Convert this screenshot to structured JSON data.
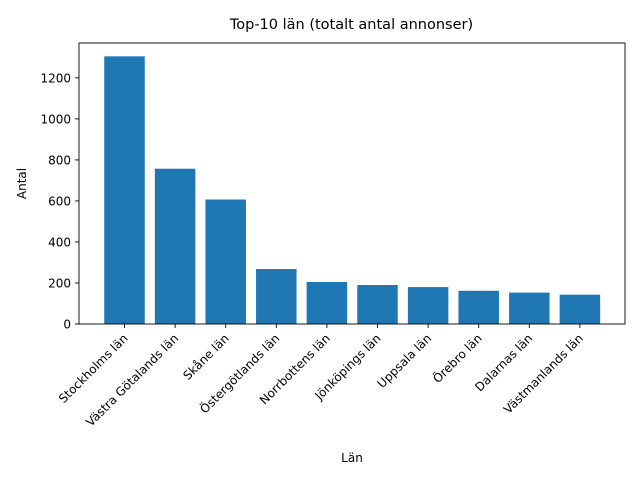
{
  "colors": {
    "bar": "#1f77b4",
    "axis": "#000000",
    "background": "#ffffff"
  },
  "chart_data": {
    "type": "bar",
    "title": "Top-10 län (totalt antal annonser)",
    "xlabel": "Län",
    "ylabel": "Antal",
    "categories": [
      "Stockholms län",
      "Västra Götalands län",
      "Skåne län",
      "Östergötlands län",
      "Norrbottens län",
      "Jönköpings län",
      "Uppsala län",
      "Örebro län",
      "Dalarnas län",
      "Västmanlands län"
    ],
    "values": [
      1305,
      757,
      607,
      268,
      205,
      190,
      180,
      162,
      153,
      143
    ],
    "ylim": [
      0,
      1370
    ],
    "yticks": [
      0,
      200,
      400,
      600,
      800,
      1000,
      1200
    ],
    "grid": false,
    "legend": "none"
  }
}
